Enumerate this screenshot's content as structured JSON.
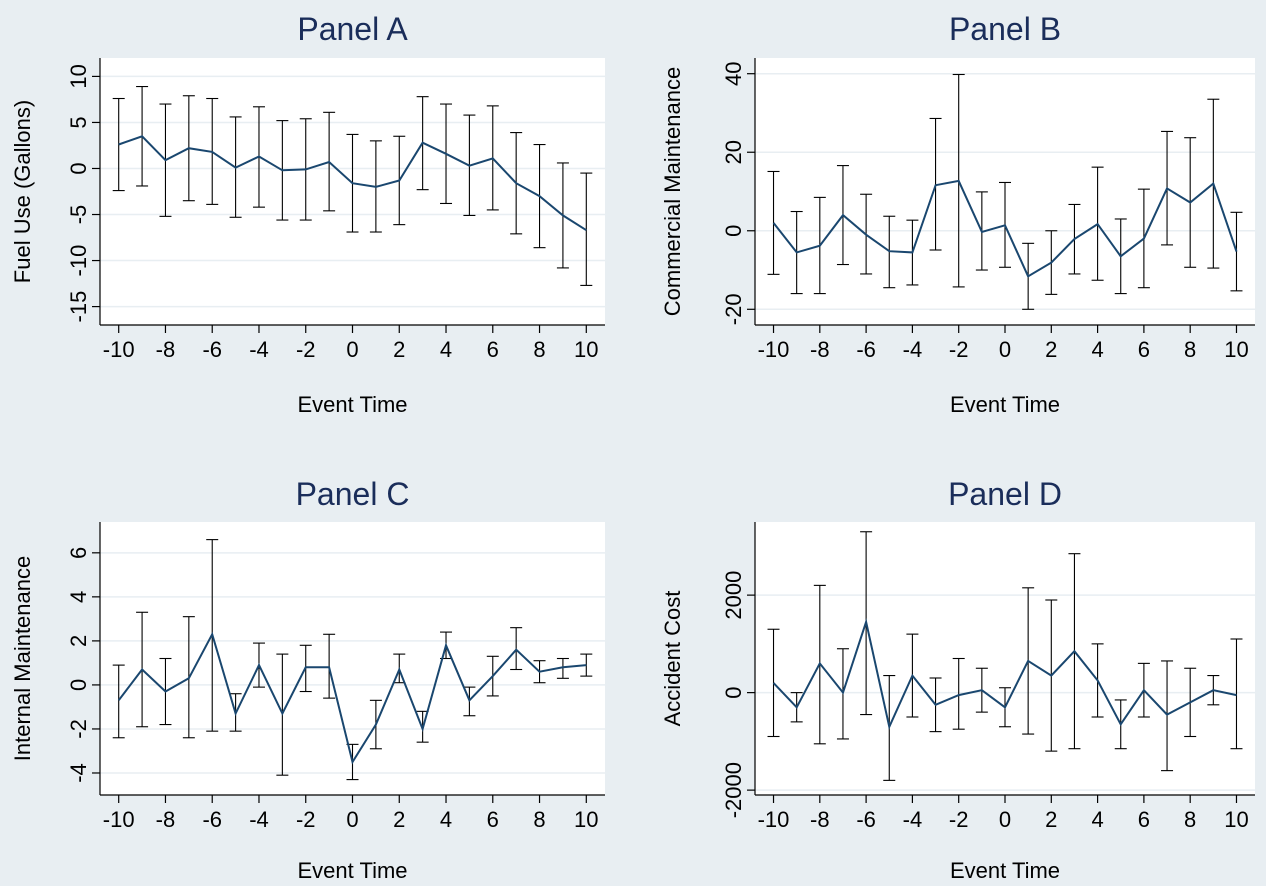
{
  "chart_data": [
    {
      "id": "A",
      "type": "line",
      "title": "Panel A",
      "xlabel": "Event Time",
      "ylabel": "Fuel Use (Gallons)",
      "x": [
        -10,
        -9,
        -8,
        -7,
        -6,
        -5,
        -4,
        -3,
        -2,
        -1,
        0,
        1,
        2,
        3,
        4,
        5,
        6,
        7,
        8,
        9,
        10
      ],
      "values": [
        2.6,
        3.5,
        0.9,
        2.2,
        1.8,
        0.1,
        1.3,
        -0.2,
        -0.1,
        0.7,
        -1.6,
        -2.0,
        -1.3,
        2.8,
        1.6,
        0.3,
        1.1,
        -1.6,
        -3.0,
        -5.1,
        -6.7
      ],
      "lower": [
        -2.4,
        -1.9,
        -5.2,
        -3.5,
        -3.9,
        -5.3,
        -4.2,
        -5.6,
        -5.6,
        -4.6,
        -6.9,
        -6.9,
        -6.1,
        -2.3,
        -3.8,
        -5.1,
        -4.5,
        -7.1,
        -8.6,
        -10.8,
        -12.7
      ],
      "upper": [
        7.6,
        8.9,
        7.0,
        7.9,
        7.6,
        5.6,
        6.7,
        5.2,
        5.4,
        6.1,
        3.7,
        3.0,
        3.5,
        7.8,
        7.0,
        5.8,
        6.8,
        3.9,
        2.6,
        0.6,
        -0.5
      ],
      "ylim": [
        -17,
        12
      ],
      "yticks": [
        -15,
        -10,
        -5,
        0,
        5,
        10
      ],
      "ytick_labels": [
        "-15",
        "-10",
        "-5",
        "0",
        "5",
        "10"
      ],
      "xticks": [
        -10,
        -8,
        -6,
        -4,
        -2,
        0,
        2,
        4,
        6,
        8,
        10
      ],
      "xtick_labels": [
        "-10",
        "-8",
        "-6",
        "-4",
        "-2",
        "0",
        "2",
        "4",
        "6",
        "8",
        "10"
      ],
      "grid": true
    },
    {
      "id": "B",
      "type": "line",
      "title": "Panel B",
      "xlabel": "Event Time",
      "ylabel": "Commercial Maintenance",
      "x": [
        -10,
        -9,
        -8,
        -7,
        -6,
        -5,
        -4,
        -3,
        -2,
        -1,
        0,
        1,
        2,
        3,
        4,
        5,
        6,
        7,
        8,
        9,
        10
      ],
      "values": [
        2.0,
        -5.5,
        -3.8,
        4.0,
        -1.0,
        -5.2,
        -5.5,
        11.6,
        12.7,
        -0.3,
        1.4,
        -11.6,
        -8.1,
        -2.1,
        1.7,
        -6.5,
        -2.0,
        10.8,
        7.2,
        12.0,
        -5.3
      ],
      "lower": [
        -11.1,
        -16.0,
        -16.0,
        -8.6,
        -11.0,
        -14.5,
        -13.8,
        -4.9,
        -14.3,
        -10.0,
        -9.3,
        -20.0,
        -16.2,
        -11.0,
        -12.6,
        -16.0,
        -14.5,
        -3.6,
        -9.3,
        -9.5,
        -15.3
      ],
      "upper": [
        15.1,
        4.9,
        8.5,
        16.6,
        9.3,
        3.7,
        2.7,
        28.6,
        39.8,
        9.9,
        12.3,
        -3.2,
        0.0,
        6.7,
        16.2,
        3.0,
        10.6,
        25.3,
        23.7,
        33.5,
        4.7
      ],
      "ylim": [
        -24,
        44
      ],
      "yticks": [
        -20,
        0,
        20,
        40
      ],
      "ytick_labels": [
        "-20",
        "0",
        "20",
        "40"
      ],
      "xticks": [
        -10,
        -8,
        -6,
        -4,
        -2,
        0,
        2,
        4,
        6,
        8,
        10
      ],
      "xtick_labels": [
        "-10",
        "-8",
        "-6",
        "-4",
        "-2",
        "0",
        "2",
        "4",
        "6",
        "8",
        "10"
      ],
      "grid": true
    },
    {
      "id": "C",
      "type": "line",
      "title": "Panel C",
      "xlabel": "Event Time",
      "ylabel": "Internal Maintenance",
      "x": [
        -10,
        -9,
        -8,
        -7,
        -6,
        -5,
        -4,
        -3,
        -2,
        -1,
        0,
        1,
        2,
        3,
        4,
        5,
        6,
        7,
        8,
        9,
        10
      ],
      "values": [
        -0.7,
        0.7,
        -0.3,
        0.3,
        2.3,
        -1.3,
        0.9,
        -1.3,
        0.8,
        0.8,
        -3.5,
        -1.8,
        0.7,
        -2.0,
        1.8,
        -0.7,
        0.4,
        1.6,
        0.6,
        0.8,
        0.9
      ],
      "lower": [
        -2.4,
        -1.9,
        -1.8,
        -2.4,
        -2.1,
        -2.1,
        -0.1,
        -4.1,
        -0.3,
        -0.6,
        -4.3,
        -2.9,
        0.1,
        -2.6,
        1.2,
        -1.4,
        -0.5,
        0.7,
        0.1,
        0.3,
        0.4
      ],
      "upper": [
        0.9,
        3.3,
        1.2,
        3.1,
        6.6,
        -0.4,
        1.9,
        1.4,
        1.8,
        2.3,
        -2.7,
        -0.7,
        1.4,
        -1.2,
        2.4,
        -0.1,
        1.3,
        2.6,
        1.1,
        1.2,
        1.4
      ],
      "ylim": [
        -5.0,
        7.4
      ],
      "yticks": [
        -4,
        -2,
        0,
        2,
        4,
        6
      ],
      "ytick_labels": [
        "-4",
        "-2",
        "0",
        "2",
        "4",
        "6"
      ],
      "xticks": [
        -10,
        -8,
        -6,
        -4,
        -2,
        0,
        2,
        4,
        6,
        8,
        10
      ],
      "xtick_labels": [
        "-10",
        "-8",
        "-6",
        "-4",
        "-2",
        "0",
        "2",
        "4",
        "6",
        "8",
        "10"
      ],
      "grid": true
    },
    {
      "id": "D",
      "type": "line",
      "title": "Panel D",
      "xlabel": "Event Time",
      "ylabel": "Accident Cost",
      "x": [
        -10,
        -9,
        -8,
        -7,
        -6,
        -5,
        -4,
        -3,
        -2,
        -1,
        0,
        1,
        2,
        3,
        4,
        5,
        6,
        7,
        8,
        9,
        10
      ],
      "values": [
        200,
        -300,
        600,
        0,
        1450,
        -700,
        350,
        -250,
        -50,
        50,
        -300,
        650,
        350,
        850,
        250,
        -650,
        50,
        -450,
        -200,
        50,
        -50
      ],
      "lower": [
        -900,
        -600,
        -1050,
        -950,
        -450,
        -1800,
        -500,
        -800,
        -750,
        -400,
        -700,
        -850,
        -1200,
        -1150,
        -500,
        -1150,
        -500,
        -1600,
        -900,
        -250,
        -1150
      ],
      "upper": [
        1300,
        0,
        2200,
        900,
        3300,
        350,
        1200,
        300,
        700,
        500,
        100,
        2150,
        1900,
        2850,
        1000,
        -150,
        600,
        650,
        500,
        350,
        1100
      ],
      "ylim": [
        -2100,
        3500
      ],
      "yticks": [
        -2000,
        0,
        2000
      ],
      "ytick_labels": [
        "-2000",
        "0",
        "2000"
      ],
      "xticks": [
        -10,
        -8,
        -6,
        -4,
        -2,
        0,
        2,
        4,
        6,
        8,
        10
      ],
      "xtick_labels": [
        "-10",
        "-8",
        "-6",
        "-4",
        "-2",
        "0",
        "2",
        "4",
        "6",
        "8",
        "10"
      ],
      "grid": true
    }
  ],
  "style": {
    "background": "#e8eef2",
    "plot_background": "#ffffff",
    "line_color": "#1a476f",
    "title_color": "#1a2d5a",
    "grid_color": "#e8eef2"
  }
}
